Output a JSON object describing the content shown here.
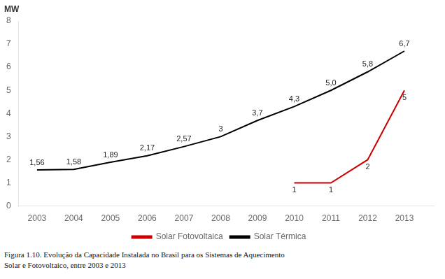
{
  "chart_data": {
    "type": "line",
    "ylabel": "MW",
    "caption": [
      "Figura 1.10. Evolução da Capacidade Instalada no Brasil para os Sistemas de Aquecimento",
      "Solar e Fotovoltaico, entre 2003 e 2013"
    ],
    "xlim": [
      2002.5,
      2013.8
    ],
    "xticks": [
      2003,
      2004,
      2005,
      2006,
      2007,
      2008,
      2009,
      2010,
      2011,
      2012,
      2013
    ],
    "ylim": [
      0,
      8
    ],
    "yticks": [
      0,
      1,
      2,
      3,
      4,
      5,
      6,
      7,
      8
    ],
    "grid": false,
    "legend": "bottom",
    "data_labels": true,
    "series": [
      {
        "name": "Solar Térmica",
        "color": "#000000",
        "x": [
          2003,
          2004,
          2005,
          2006,
          2007,
          2008,
          2009,
          2010,
          2011,
          2012,
          2013
        ],
        "values": [
          1.56,
          1.58,
          1.89,
          2.17,
          2.57,
          3.0,
          3.7,
          4.3,
          5.0,
          5.8,
          6.7
        ],
        "value_labels": [
          "1,56",
          "1,58",
          "1,89",
          "2,17",
          "2,57",
          "3",
          "3,7",
          "4,3",
          "5,0",
          "5,8",
          "6,7"
        ]
      },
      {
        "name": "Solar Fotovoltaica",
        "color": "#cc0000",
        "x": [
          2010,
          2011,
          2012,
          2013
        ],
        "values": [
          1.0,
          1.0,
          2.0,
          5.0
        ],
        "value_labels": [
          "1",
          "1",
          "2",
          "5"
        ]
      }
    ]
  }
}
